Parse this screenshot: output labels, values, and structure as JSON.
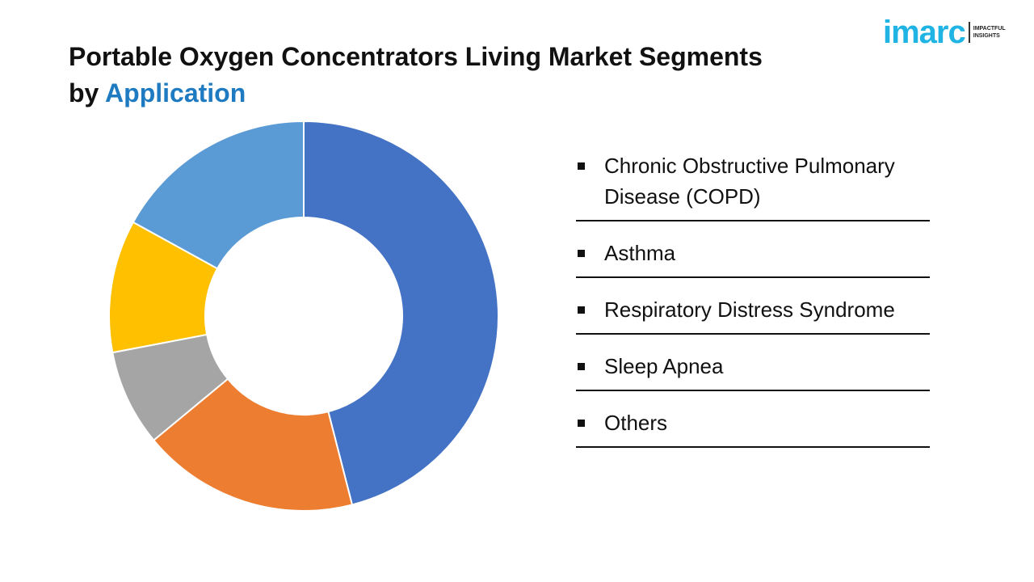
{
  "chart_data": {
    "type": "pie",
    "title": "Portable Oxygen Concentrators Living Market Segments by",
    "title_highlight": "Application",
    "categories": [
      "Chronic Obstructive Pulmonary Disease (COPD)",
      "Asthma",
      "Respiratory Distress Syndrome",
      "Sleep Apnea",
      "Others"
    ],
    "values": [
      46,
      18,
      8,
      11,
      17
    ],
    "colors": [
      "#4472c4",
      "#ed7d31",
      "#a5a5a5",
      "#ffc000",
      "#5b9bd5"
    ],
    "donut": true
  },
  "logo": {
    "name": "imarc",
    "tagline": [
      "IMPACTFUL",
      "INSIGHTS"
    ]
  }
}
